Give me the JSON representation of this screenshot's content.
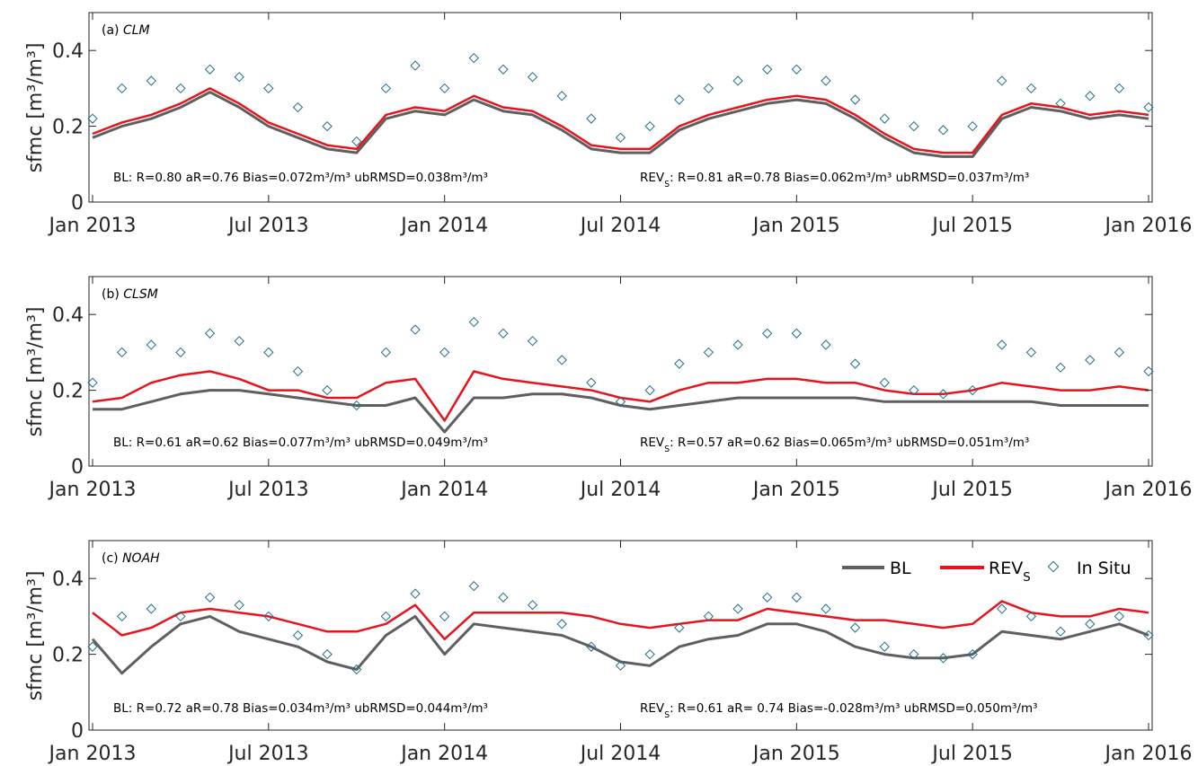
{
  "chart_data": [
    {
      "type": "line",
      "panel_label": "(a)",
      "title": "CLM",
      "ylabel": "sfmc [m³/m³]",
      "ylim": [
        0,
        0.5
      ],
      "yticks": [
        "0",
        "0.2",
        "0.4"
      ],
      "xticks": [
        "Jan 2013",
        "Jul 2013",
        "Jan 2014",
        "Jul 2014",
        "Jan 2015",
        "Jul 2015",
        "Jan 2016"
      ],
      "xlim": [
        "2013-01-01",
        "2016-01-01"
      ],
      "stats_bl": "BL: R=0.80 aR=0.76  Bias=0.072m³/m³ ubRMSD=0.038m³/m³",
      "stats_rev": "REVS: R=0.81 aR=0.78  Bias=0.062m³/m³ ubRMSD=0.037m³/m³",
      "series": [
        {
          "name": "BL",
          "color": "#5f5f5f",
          "x_months": [
            0,
            1,
            2,
            3,
            4,
            5,
            6,
            7,
            8,
            9,
            10,
            11,
            12,
            13,
            14,
            15,
            16,
            17,
            18,
            19,
            20,
            21,
            22,
            23,
            24,
            25,
            26,
            27,
            28,
            29,
            30,
            31,
            32,
            33,
            34,
            35,
            36
          ],
          "values": [
            0.17,
            0.2,
            0.22,
            0.25,
            0.29,
            0.25,
            0.2,
            0.17,
            0.14,
            0.13,
            0.22,
            0.24,
            0.23,
            0.27,
            0.24,
            0.23,
            0.19,
            0.14,
            0.13,
            0.13,
            0.19,
            0.22,
            0.24,
            0.26,
            0.27,
            0.26,
            0.22,
            0.17,
            0.13,
            0.12,
            0.12,
            0.22,
            0.25,
            0.24,
            0.22,
            0.23,
            0.22
          ]
        },
        {
          "name": "REVS",
          "color": "#e8131b",
          "x_months": [
            0,
            1,
            2,
            3,
            4,
            5,
            6,
            7,
            8,
            9,
            10,
            11,
            12,
            13,
            14,
            15,
            16,
            17,
            18,
            19,
            20,
            21,
            22,
            23,
            24,
            25,
            26,
            27,
            28,
            29,
            30,
            31,
            32,
            33,
            34,
            35,
            36
          ],
          "values": [
            0.18,
            0.21,
            0.23,
            0.26,
            0.3,
            0.26,
            0.21,
            0.18,
            0.15,
            0.14,
            0.23,
            0.25,
            0.24,
            0.28,
            0.25,
            0.24,
            0.2,
            0.15,
            0.14,
            0.14,
            0.2,
            0.23,
            0.25,
            0.27,
            0.28,
            0.27,
            0.23,
            0.18,
            0.14,
            0.13,
            0.13,
            0.23,
            0.26,
            0.25,
            0.23,
            0.24,
            0.23
          ]
        },
        {
          "name": "In Situ",
          "color": "#1f6f8b",
          "x_months": [
            0,
            1,
            2,
            3,
            4,
            5,
            6,
            7,
            8,
            9,
            10,
            11,
            12,
            13,
            14,
            15,
            16,
            17,
            18,
            19,
            20,
            21,
            22,
            23,
            24,
            25,
            26,
            27,
            28,
            29,
            30,
            31,
            32,
            33,
            34,
            35,
            36
          ],
          "values": [
            0.22,
            0.3,
            0.32,
            0.3,
            0.35,
            0.33,
            0.3,
            0.25,
            0.2,
            0.16,
            0.3,
            0.36,
            0.3,
            0.38,
            0.35,
            0.33,
            0.28,
            0.22,
            0.17,
            0.2,
            0.27,
            0.3,
            0.32,
            0.35,
            0.35,
            0.32,
            0.27,
            0.22,
            0.2,
            0.19,
            0.2,
            0.32,
            0.3,
            0.26,
            0.28,
            0.3,
            0.25
          ]
        }
      ]
    },
    {
      "type": "line",
      "panel_label": "(b)",
      "title": "CLSM",
      "ylabel": "sfmc [m³/m³]",
      "ylim": [
        0,
        0.5
      ],
      "yticks": [
        "0",
        "0.2",
        "0.4"
      ],
      "xticks": [
        "Jan 2013",
        "Jul 2013",
        "Jan 2014",
        "Jul 2014",
        "Jan 2015",
        "Jul 2015",
        "Jan 2016"
      ],
      "xlim": [
        "2013-01-01",
        "2016-01-01"
      ],
      "stats_bl": "BL: R=0.61 aR=0.62  Bias=0.077m³/m³ ubRMSD=0.049m³/m³",
      "stats_rev": "REVS: R=0.57 aR=0.62  Bias=0.065m³/m³ ubRMSD=0.051m³/m³",
      "series": [
        {
          "name": "BL",
          "color": "#5f5f5f",
          "x_months": [
            0,
            1,
            2,
            3,
            4,
            5,
            6,
            7,
            8,
            9,
            10,
            11,
            12,
            13,
            14,
            15,
            16,
            17,
            18,
            19,
            20,
            21,
            22,
            23,
            24,
            25,
            26,
            27,
            28,
            29,
            30,
            31,
            32,
            33,
            34,
            35,
            36
          ],
          "values": [
            0.15,
            0.15,
            0.17,
            0.19,
            0.2,
            0.2,
            0.19,
            0.18,
            0.17,
            0.16,
            0.16,
            0.18,
            0.09,
            0.18,
            0.18,
            0.19,
            0.19,
            0.18,
            0.16,
            0.15,
            0.16,
            0.17,
            0.18,
            0.18,
            0.18,
            0.18,
            0.18,
            0.17,
            0.17,
            0.17,
            0.17,
            0.17,
            0.17,
            0.16,
            0.16,
            0.16,
            0.16
          ]
        },
        {
          "name": "REVS",
          "color": "#e8131b",
          "x_months": [
            0,
            1,
            2,
            3,
            4,
            5,
            6,
            7,
            8,
            9,
            10,
            11,
            12,
            13,
            14,
            15,
            16,
            17,
            18,
            19,
            20,
            21,
            22,
            23,
            24,
            25,
            26,
            27,
            28,
            29,
            30,
            31,
            32,
            33,
            34,
            35,
            36
          ],
          "values": [
            0.17,
            0.18,
            0.22,
            0.24,
            0.25,
            0.23,
            0.2,
            0.2,
            0.18,
            0.18,
            0.22,
            0.23,
            0.12,
            0.25,
            0.23,
            0.22,
            0.21,
            0.2,
            0.18,
            0.17,
            0.2,
            0.22,
            0.22,
            0.23,
            0.23,
            0.22,
            0.22,
            0.2,
            0.19,
            0.19,
            0.2,
            0.22,
            0.21,
            0.2,
            0.2,
            0.21,
            0.2
          ]
        },
        {
          "name": "In Situ",
          "color": "#1f6f8b",
          "x_months": [
            0,
            1,
            2,
            3,
            4,
            5,
            6,
            7,
            8,
            9,
            10,
            11,
            12,
            13,
            14,
            15,
            16,
            17,
            18,
            19,
            20,
            21,
            22,
            23,
            24,
            25,
            26,
            27,
            28,
            29,
            30,
            31,
            32,
            33,
            34,
            35,
            36
          ],
          "values": [
            0.22,
            0.3,
            0.32,
            0.3,
            0.35,
            0.33,
            0.3,
            0.25,
            0.2,
            0.16,
            0.3,
            0.36,
            0.3,
            0.38,
            0.35,
            0.33,
            0.28,
            0.22,
            0.17,
            0.2,
            0.27,
            0.3,
            0.32,
            0.35,
            0.35,
            0.32,
            0.27,
            0.22,
            0.2,
            0.19,
            0.2,
            0.32,
            0.3,
            0.26,
            0.28,
            0.3,
            0.25
          ]
        }
      ]
    },
    {
      "type": "line",
      "panel_label": "(c)",
      "title": "NOAH",
      "ylabel": "sfmc [m³/m³]",
      "ylim": [
        0,
        0.5
      ],
      "yticks": [
        "0",
        "0.2",
        "0.4"
      ],
      "xticks": [
        "Jan 2013",
        "Jul 2013",
        "Jan 2014",
        "Jul 2014",
        "Jan 2015",
        "Jul 2015",
        "Jan 2016"
      ],
      "xlim": [
        "2013-01-01",
        "2016-01-01"
      ],
      "stats_bl": "BL: R=0.72 aR=0.78  Bias=0.034m³/m³ ubRMSD=0.044m³/m³",
      "stats_rev": "REVS: R=0.61 aR= 0.74  Bias=-0.028m³/m³ ubRMSD=0.050m³/m³",
      "legend": {
        "position": "top-right",
        "entries": [
          "BL",
          "REVS",
          "In Situ"
        ]
      },
      "series": [
        {
          "name": "BL",
          "color": "#5f5f5f",
          "x_months": [
            0,
            1,
            2,
            3,
            4,
            5,
            6,
            7,
            8,
            9,
            10,
            11,
            12,
            13,
            14,
            15,
            16,
            17,
            18,
            19,
            20,
            21,
            22,
            23,
            24,
            25,
            26,
            27,
            28,
            29,
            30,
            31,
            32,
            33,
            34,
            35,
            36
          ],
          "values": [
            0.24,
            0.15,
            0.22,
            0.28,
            0.3,
            0.26,
            0.24,
            0.22,
            0.18,
            0.16,
            0.25,
            0.3,
            0.2,
            0.28,
            0.27,
            0.26,
            0.25,
            0.22,
            0.18,
            0.17,
            0.22,
            0.24,
            0.25,
            0.28,
            0.28,
            0.26,
            0.22,
            0.2,
            0.19,
            0.19,
            0.2,
            0.26,
            0.25,
            0.24,
            0.26,
            0.28,
            0.25
          ]
        },
        {
          "name": "REVS",
          "color": "#e8131b",
          "x_months": [
            0,
            1,
            2,
            3,
            4,
            5,
            6,
            7,
            8,
            9,
            10,
            11,
            12,
            13,
            14,
            15,
            16,
            17,
            18,
            19,
            20,
            21,
            22,
            23,
            24,
            25,
            26,
            27,
            28,
            29,
            30,
            31,
            32,
            33,
            34,
            35,
            36
          ],
          "values": [
            0.31,
            0.25,
            0.27,
            0.31,
            0.32,
            0.31,
            0.3,
            0.28,
            0.26,
            0.26,
            0.28,
            0.33,
            0.24,
            0.31,
            0.31,
            0.31,
            0.31,
            0.3,
            0.28,
            0.27,
            0.28,
            0.29,
            0.29,
            0.32,
            0.31,
            0.3,
            0.29,
            0.29,
            0.28,
            0.27,
            0.28,
            0.34,
            0.31,
            0.3,
            0.3,
            0.32,
            0.31
          ]
        },
        {
          "name": "In Situ",
          "color": "#1f6f8b",
          "x_months": [
            0,
            1,
            2,
            3,
            4,
            5,
            6,
            7,
            8,
            9,
            10,
            11,
            12,
            13,
            14,
            15,
            16,
            17,
            18,
            19,
            20,
            21,
            22,
            23,
            24,
            25,
            26,
            27,
            28,
            29,
            30,
            31,
            32,
            33,
            34,
            35,
            36
          ],
          "values": [
            0.22,
            0.3,
            0.32,
            0.3,
            0.35,
            0.33,
            0.3,
            0.25,
            0.2,
            0.16,
            0.3,
            0.36,
            0.3,
            0.38,
            0.35,
            0.33,
            0.28,
            0.22,
            0.17,
            0.2,
            0.27,
            0.3,
            0.32,
            0.35,
            0.35,
            0.32,
            0.27,
            0.22,
            0.2,
            0.19,
            0.2,
            0.32,
            0.3,
            0.26,
            0.28,
            0.3,
            0.25
          ]
        }
      ]
    }
  ]
}
